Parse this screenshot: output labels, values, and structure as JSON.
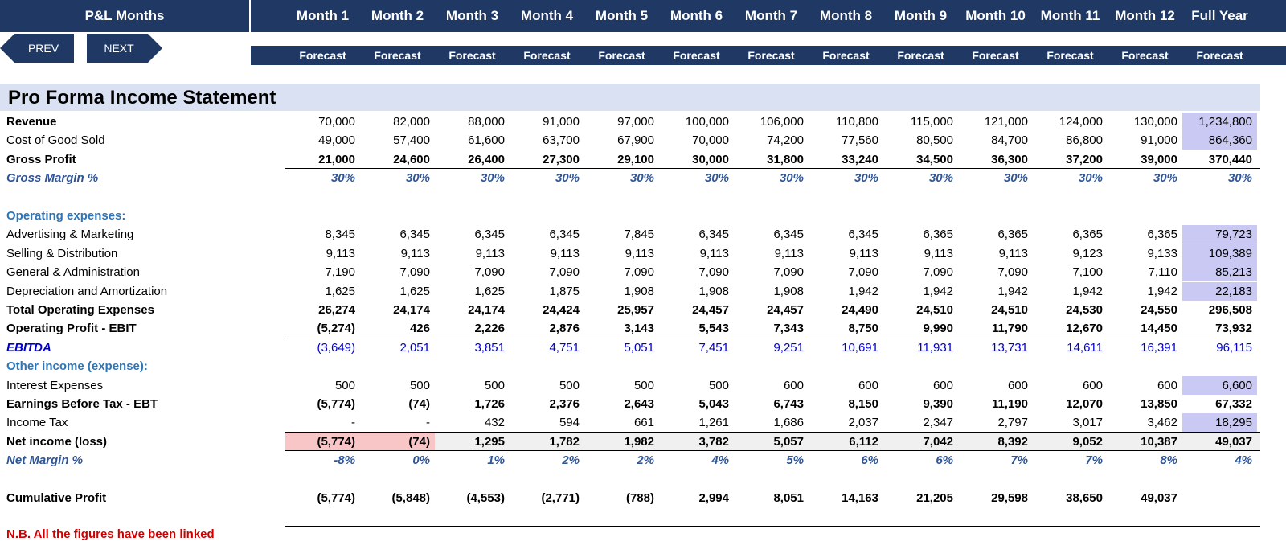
{
  "header": {
    "title": "P&L Months",
    "prev": "PREV",
    "next": "NEXT"
  },
  "columns": [
    "Month 1",
    "Month 2",
    "Month 3",
    "Month 4",
    "Month 5",
    "Month 6",
    "Month 7",
    "Month 8",
    "Month 9",
    "Month 10",
    "Month 11",
    "Month 12",
    "Full Year"
  ],
  "forecast_label": "Forecast",
  "title": "Pro Forma Income Statement",
  "rows": [
    {
      "key": "revenue",
      "label": "Revenue",
      "style": "bold-label",
      "values": [
        "70,000",
        "82,000",
        "88,000",
        "91,000",
        "97,000",
        "100,000",
        "106,000",
        "110,800",
        "115,000",
        "121,000",
        "124,000",
        "130,000",
        "1,234,800"
      ],
      "hl_last": true
    },
    {
      "key": "cogs",
      "label": "Cost of Good Sold",
      "style": "plain",
      "values": [
        "49,000",
        "57,400",
        "61,600",
        "63,700",
        "67,900",
        "70,000",
        "74,200",
        "77,560",
        "80,500",
        "84,700",
        "86,800",
        "91,000",
        "864,360"
      ],
      "hl_last": true
    },
    {
      "key": "gross_profit",
      "label": "Gross Profit",
      "style": "bold",
      "values": [
        "21,000",
        "24,600",
        "26,400",
        "27,300",
        "29,100",
        "30,000",
        "31,800",
        "33,240",
        "34,500",
        "36,300",
        "37,200",
        "39,000",
        "370,440"
      ]
    },
    {
      "key": "gross_margin",
      "label": "Gross Margin %",
      "style": "pct",
      "values": [
        "30%",
        "30%",
        "30%",
        "30%",
        "30%",
        "30%",
        "30%",
        "30%",
        "30%",
        "30%",
        "30%",
        "30%",
        "30%"
      ]
    },
    {
      "key": "blank1",
      "label": "",
      "style": "plain",
      "values": []
    },
    {
      "key": "opex_header",
      "label": "Operating expenses:",
      "style": "section",
      "values": []
    },
    {
      "key": "advertising",
      "label": "Advertising & Marketing",
      "style": "plain",
      "values": [
        "8,345",
        "6,345",
        "6,345",
        "6,345",
        "7,845",
        "6,345",
        "6,345",
        "6,345",
        "6,365",
        "6,365",
        "6,365",
        "6,365",
        "79,723"
      ],
      "hl_last": true
    },
    {
      "key": "selling",
      "label": "Selling & Distribution",
      "style": "plain",
      "values": [
        "9,113",
        "9,113",
        "9,113",
        "9,113",
        "9,113",
        "9,113",
        "9,113",
        "9,113",
        "9,113",
        "9,113",
        "9,123",
        "9,133",
        "109,389"
      ],
      "hl_last": true
    },
    {
      "key": "general",
      "label": "General & Administration",
      "style": "plain",
      "values": [
        "7,190",
        "7,090",
        "7,090",
        "7,090",
        "7,090",
        "7,090",
        "7,090",
        "7,090",
        "7,090",
        "7,090",
        "7,100",
        "7,110",
        "85,213"
      ],
      "hl_last": true
    },
    {
      "key": "depreciation",
      "label": "Depreciation and Amortization",
      "style": "plain",
      "values": [
        "1,625",
        "1,625",
        "1,625",
        "1,875",
        "1,908",
        "1,908",
        "1,908",
        "1,942",
        "1,942",
        "1,942",
        "1,942",
        "1,942",
        "22,183"
      ],
      "hl_last": true
    },
    {
      "key": "total_opex",
      "label": "Total Operating Expenses",
      "style": "bold",
      "values": [
        "26,274",
        "24,174",
        "24,174",
        "24,424",
        "25,957",
        "24,457",
        "24,457",
        "24,490",
        "24,510",
        "24,510",
        "24,530",
        "24,550",
        "296,508"
      ]
    },
    {
      "key": "ebit",
      "label": "Operating Profit - EBIT",
      "style": "bold",
      "values": [
        "(5,274)",
        "426",
        "2,226",
        "2,876",
        "3,143",
        "5,543",
        "7,343",
        "8,750",
        "9,990",
        "11,790",
        "12,670",
        "14,450",
        "73,932"
      ]
    },
    {
      "key": "ebitda",
      "label": "EBITDA",
      "style": "ebitda",
      "values": [
        "(3,649)",
        "2,051",
        "3,851",
        "4,751",
        "5,051",
        "7,451",
        "9,251",
        "10,691",
        "11,931",
        "13,731",
        "14,611",
        "16,391",
        "96,115"
      ]
    },
    {
      "key": "other_header",
      "label": "Other income (expense):",
      "style": "section",
      "values": []
    },
    {
      "key": "interest",
      "label": "Interest Expenses",
      "style": "plain",
      "values": [
        "500",
        "500",
        "500",
        "500",
        "500",
        "500",
        "600",
        "600",
        "600",
        "600",
        "600",
        "600",
        "6,600"
      ],
      "hl_last": true
    },
    {
      "key": "ebt",
      "label": "Earnings Before Tax - EBT",
      "style": "bold",
      "values": [
        "(5,774)",
        "(74)",
        "1,726",
        "2,376",
        "2,643",
        "5,043",
        "6,743",
        "8,150",
        "9,390",
        "11,190",
        "12,070",
        "13,850",
        "67,332"
      ]
    },
    {
      "key": "tax",
      "label": "Income Tax",
      "style": "plain",
      "values": [
        "-",
        "-",
        "432",
        "594",
        "661",
        "1,261",
        "1,686",
        "2,037",
        "2,347",
        "2,797",
        "3,017",
        "3,462",
        "18,295"
      ],
      "hl_last": true
    },
    {
      "key": "net_income",
      "label": "Net income (loss)",
      "style": "bold",
      "values": [
        "(5,774)",
        "(74)",
        "1,295",
        "1,782",
        "1,982",
        "3,782",
        "5,057",
        "6,112",
        "7,042",
        "8,392",
        "9,052",
        "10,387",
        "49,037"
      ]
    },
    {
      "key": "net_margin",
      "label": "Net Margin %",
      "style": "pct",
      "values": [
        "-8%",
        "0%",
        "1%",
        "2%",
        "2%",
        "4%",
        "5%",
        "6%",
        "6%",
        "7%",
        "7%",
        "8%",
        "4%"
      ]
    },
    {
      "key": "blank2",
      "label": "",
      "style": "plain",
      "values": []
    },
    {
      "key": "cumulative",
      "label": "Cumulative Profit",
      "style": "bold",
      "values": [
        "(5,774)",
        "(5,848)",
        "(4,553)",
        "(2,771)",
        "(788)",
        "2,994",
        "8,051",
        "14,163",
        "21,205",
        "29,598",
        "38,650",
        "49,037",
        ""
      ]
    }
  ],
  "note": "N.B. All the figures have been linked",
  "colors": {
    "navy": "#1f3864",
    "title_band": "#d9e1f2",
    "highlight": "#c9c9f3",
    "negative_highlight": "#f8c6c6"
  }
}
